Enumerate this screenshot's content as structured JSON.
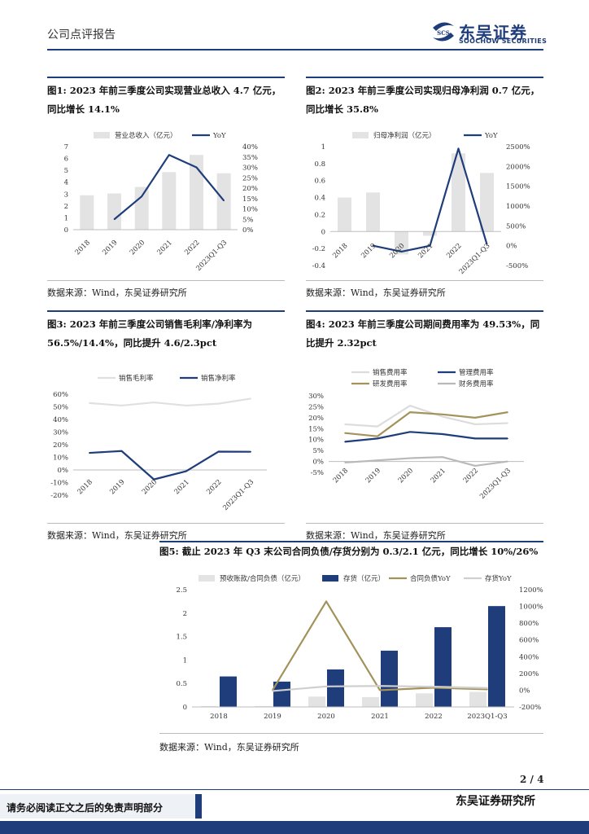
{
  "header": {
    "title": "公司点评报告",
    "logo_cn": "东吴证券",
    "logo_en": "SOOCHOW SECURITIES",
    "logo_badge": "SCS"
  },
  "figures": {
    "fig1": {
      "title_line1": "图1: 2023 年前三季度公司实现营业总收入 4.7 亿元，",
      "title_line2": "同比增长 14.1%",
      "source": "数据来源：Wind，东吴证券研究所"
    },
    "fig2": {
      "title_line1": "图2: 2023 年前三季度公司实现归母净利润 0.7 亿元，",
      "title_line2": "同比增长 35.8%",
      "source": "数据来源：Wind，东吴证券研究所"
    },
    "fig3": {
      "title_line1": "图3: 2023 年前三季度公司销售毛利率/净利率为",
      "title_line2": "56.5%/14.4%，同比提升 4.6/2.3pct",
      "source": "数据来源：Wind，东吴证券研究所"
    },
    "fig4": {
      "title_line1": "图4: 2023 年前三季度公司期间费用率为 49.53%，同",
      "title_line2": "比提升 2.32pct",
      "source": "数据来源：Wind，东吴证券研究所"
    },
    "fig5": {
      "title": "图5: 截止 2023 年 Q3 末公司合同负债/存货分别为 0.3/2.1 亿元，同比增长 10%/26%",
      "source": "数据来源：Wind，东吴证券研究所"
    }
  },
  "footer": {
    "page": "2 / 4",
    "disclaimer": "请务必阅读正文之后的免责声明部分",
    "org": "东吴证券研究所"
  },
  "colors": {
    "navy": "#1f3d7a",
    "bar_grey": "#e3e3e3",
    "olive": "#a3935a",
    "light_grey": "#cfcfcf"
  },
  "chart_data": [
    {
      "id": "fig1",
      "type": "bar+line",
      "categories": [
        "2018",
        "2019",
        "2020",
        "2021",
        "2022",
        "2023Q1-Q3"
      ],
      "series": [
        {
          "name": "营业总收入（亿元）",
          "axis": "left",
          "kind": "bar",
          "values": [
            2.9,
            3.05,
            3.6,
            4.85,
            6.3,
            4.75
          ]
        },
        {
          "name": "YoY",
          "axis": "right",
          "kind": "line",
          "values": [
            null,
            5,
            16,
            36,
            30,
            14
          ]
        }
      ],
      "ylim": [
        0,
        7
      ],
      "yticks": [
        0,
        1,
        2,
        3,
        4,
        5,
        6,
        7
      ],
      "y2lim": [
        0,
        40
      ],
      "y2ticks": [
        "0%",
        "5%",
        "10%",
        "15%",
        "20%",
        "25%",
        "30%",
        "35%",
        "40%"
      ]
    },
    {
      "id": "fig2",
      "type": "bar+line",
      "categories": [
        "2018",
        "2019",
        "2020",
        "2021",
        "2022",
        "2023Q1-Q3"
      ],
      "series": [
        {
          "name": "归母净利润（亿元）",
          "axis": "left",
          "kind": "bar",
          "values": [
            0.4,
            0.46,
            -0.27,
            -0.05,
            0.92,
            0.69
          ]
        },
        {
          "name": "YoY",
          "axis": "right",
          "kind": "line",
          "values": [
            null,
            0,
            -150,
            0,
            2450,
            36
          ]
        }
      ],
      "ylim": [
        -0.4,
        1
      ],
      "yticks": [
        "-0.4",
        "-0.2",
        "0",
        "0.2",
        "0.4",
        "0.6",
        "0.8",
        "1"
      ],
      "y2lim": [
        -500,
        2500
      ],
      "y2ticks": [
        "-500%",
        "0%",
        "500%",
        "1000%",
        "1500%",
        "2000%",
        "2500%"
      ]
    },
    {
      "id": "fig3",
      "type": "line",
      "categories": [
        "2018",
        "2019",
        "2020",
        "2021",
        "2022",
        "2023Q1-Q3"
      ],
      "series": [
        {
          "name": "销售毛利率",
          "values": [
            53,
            51,
            53.5,
            51,
            52.5,
            56.5
          ]
        },
        {
          "name": "销售净利率",
          "values": [
            13.5,
            15,
            -7.5,
            -1,
            14.5,
            14.4
          ]
        }
      ],
      "ylim": [
        -20,
        60
      ],
      "yticks": [
        "-20%",
        "-10%",
        "0%",
        "10%",
        "20%",
        "30%",
        "40%",
        "50%",
        "60%"
      ]
    },
    {
      "id": "fig4",
      "type": "line",
      "categories": [
        "2018",
        "2019",
        "2020",
        "2021",
        "2022",
        "2023Q1-Q3"
      ],
      "series": [
        {
          "name": "销售费用率",
          "values": [
            17,
            16,
            25.5,
            20.5,
            17,
            17.5
          ]
        },
        {
          "name": "管理费用率",
          "values": [
            9,
            10.5,
            13.5,
            12.5,
            10.5,
            10.5
          ]
        },
        {
          "name": "研发费用率",
          "values": [
            13,
            11.5,
            22.5,
            21.5,
            20,
            22.5
          ]
        },
        {
          "name": "财务费用率",
          "values": [
            -0.5,
            0.5,
            1.5,
            2,
            -2,
            0
          ]
        }
      ],
      "ylim": [
        -5,
        30
      ],
      "yticks": [
        "-5%",
        "0%",
        "5%",
        "10%",
        "15%",
        "20%",
        "25%",
        "30%"
      ]
    },
    {
      "id": "fig5",
      "type": "bar+line",
      "categories": [
        "2018",
        "2019",
        "2020",
        "2021",
        "2022",
        "2023Q1-Q3"
      ],
      "series": [
        {
          "name": "预收账款/合同负债（亿元）",
          "axis": "left",
          "kind": "bar",
          "values": [
            0.02,
            0.02,
            0.22,
            0.21,
            0.29,
            0.32
          ]
        },
        {
          "name": "存货（亿元）",
          "axis": "left",
          "kind": "bar",
          "values": [
            0.65,
            0.54,
            0.8,
            1.2,
            1.7,
            2.15
          ]
        },
        {
          "name": "合同负债YoY",
          "axis": "right",
          "kind": "line",
          "values": [
            null,
            0,
            1060,
            0,
            30,
            10
          ]
        },
        {
          "name": "存货YoY",
          "axis": "right",
          "kind": "line",
          "values": [
            null,
            -10,
            45,
            50,
            42,
            26
          ]
        }
      ],
      "ylim": [
        0,
        2.5
      ],
      "yticks": [
        "0",
        "0.5",
        "1",
        "1.5",
        "2",
        "2.5"
      ],
      "y2lim": [
        -200,
        1200
      ],
      "y2ticks": [
        "-200%",
        "0%",
        "200%",
        "400%",
        "600%",
        "800%",
        "1000%",
        "1200%"
      ]
    }
  ]
}
